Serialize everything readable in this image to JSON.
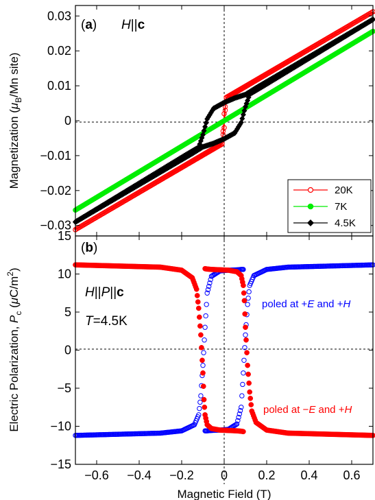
{
  "chart_data": [
    {
      "panel": "(a)",
      "type": "line",
      "annotation": [
        "H",
        "||",
        "c"
      ],
      "ylabel_parts": [
        "Magnetization (",
        "μ",
        "B",
        "/Mn site)"
      ],
      "xlim": [
        -0.7,
        0.7
      ],
      "ylim": [
        -0.033,
        0.033
      ],
      "yticks": [
        -0.03,
        -0.02,
        -0.01,
        0,
        0.01,
        0.02,
        0.03
      ],
      "ytick_labels": [
        "−0.03",
        "−0.02",
        "−0.01",
        "0",
        "0.01",
        "0.02",
        "0.03"
      ],
      "zero_lines": true,
      "legend_location": "lower-right",
      "series": [
        {
          "name": "20K",
          "color": "#ff0000",
          "marker": "open-circle",
          "branches": [
            {
              "x": [
                -0.7,
                -0.01,
                -0.005,
                0.0
              ],
              "y": [
                -0.0312,
                -0.0067,
                -0.003,
                0.002
              ]
            },
            {
              "x": [
                0.0,
                0.005,
                0.01,
                0.7
              ],
              "y": [
                0.002,
                0.004,
                0.0065,
                0.0312
              ]
            },
            {
              "x": [
                0.7,
                0.01,
                0.005,
                0.0
              ],
              "y": [
                0.0312,
                0.0067,
                0.003,
                -0.002
              ]
            },
            {
              "x": [
                0.0,
                -0.005,
                -0.01,
                -0.7
              ],
              "y": [
                -0.002,
                -0.004,
                -0.0065,
                -0.0312
              ]
            }
          ]
        },
        {
          "name": "7K",
          "color": "#00ee00",
          "marker": "filled-circle",
          "branches": [
            {
              "x": [
                -0.7,
                0.7
              ],
              "y": [
                -0.0256,
                0.0256
              ]
            }
          ]
        },
        {
          "name": "4.5K",
          "color": "#000000",
          "marker": "filled-diamond",
          "branches": [
            {
              "x": [
                -0.7,
                -0.2,
                -0.12,
                -0.1,
                -0.08,
                -0.05,
                0.0,
                0.05,
                0.1,
                0.15,
                0.7
              ],
              "y": [
                -0.029,
                -0.0105,
                -0.0076,
                -0.004,
                0.0005,
                0.0035,
                0.0052,
                0.0065,
                0.0075,
                0.0094,
                0.029
              ]
            },
            {
              "x": [
                0.7,
                0.2,
                0.12,
                0.1,
                0.08,
                0.05,
                0.0,
                -0.05,
                -0.1,
                -0.15,
                -0.7
              ],
              "y": [
                0.029,
                0.0105,
                0.0076,
                0.004,
                -0.0005,
                -0.0035,
                -0.0052,
                -0.0065,
                -0.0075,
                -0.0094,
                -0.029
              ]
            }
          ]
        }
      ]
    },
    {
      "panel": "(b)",
      "type": "scatter",
      "annotation_line1": [
        "H",
        "||",
        "P",
        "||",
        "c"
      ],
      "annotation_line2": [
        "T",
        "=4.5K"
      ],
      "ylabel_parts": [
        "Electric Polarization, ",
        "P",
        "c",
        " (",
        "μ",
        "C/m",
        "2",
        ")"
      ],
      "xlabel": "Magnetic Field (T)",
      "xlim": [
        -0.7,
        0.7
      ],
      "ylim": [
        -15,
        15
      ],
      "xticks": [
        -0.6,
        -0.4,
        -0.2,
        0,
        0.2,
        0.4,
        0.6
      ],
      "xtick_labels": [
        "−0.6",
        "−0.4",
        "−0.2",
        "0",
        "0.2",
        "0.4",
        "0.6"
      ],
      "yticks": [
        -15,
        -10,
        -5,
        0,
        5,
        10,
        15
      ],
      "ytick_labels": [
        "−15",
        "−10",
        "−5",
        "0",
        "5",
        "10",
        "15"
      ],
      "zero_lines": true,
      "series": [
        {
          "label_parts": [
            "poled at +",
            "E",
            " and +",
            "H"
          ],
          "color": "#0000ff",
          "marker": "open-circle",
          "branches": [
            {
              "x": [
                -0.7,
                -0.3,
                -0.2,
                -0.14,
                -0.12,
                -0.11,
                -0.1,
                -0.09,
                -0.08,
                -0.06,
                -0.02,
                0.02,
                0.06,
                0.08,
                0.09
              ],
              "y": [
                -11.2,
                -10.9,
                -10.6,
                -9.8,
                -8.5,
                -6.0,
                -2.0,
                3.0,
                7.5,
                9.7,
                10.4,
                10.5,
                10.55,
                10.6,
                10.6
              ]
            },
            {
              "x": [
                0.7,
                0.3,
                0.2,
                0.14,
                0.12,
                0.11,
                0.1,
                0.09,
                0.08,
                0.06,
                0.02,
                -0.02,
                -0.06,
                -0.08,
                -0.09
              ],
              "y": [
                11.2,
                10.9,
                10.6,
                9.8,
                8.5,
                6.0,
                2.0,
                -3.0,
                -7.5,
                -9.7,
                -10.4,
                -10.5,
                -10.55,
                -10.6,
                -10.6
              ]
            }
          ]
        },
        {
          "label_parts": [
            "poled at −",
            "E",
            " and +",
            "H"
          ],
          "color": "#ff0000",
          "marker": "filled-circle",
          "branches": [
            {
              "x": [
                -0.7,
                -0.3,
                -0.2,
                -0.15,
                -0.13,
                -0.12,
                -0.11,
                -0.1,
                -0.095,
                -0.09,
                -0.08,
                -0.06,
                -0.02,
                0.02,
                0.06,
                0.08,
                0.09
              ],
              "y": [
                11.2,
                10.9,
                10.5,
                9.5,
                8.0,
                5.5,
                2.0,
                -3.0,
                -6.5,
                -8.5,
                -9.8,
                -10.3,
                -10.5,
                -10.55,
                -10.6,
                -10.65,
                -10.7
              ]
            },
            {
              "x": [
                0.7,
                0.3,
                0.2,
                0.15,
                0.13,
                0.12,
                0.11,
                0.1,
                0.095,
                0.09,
                0.08,
                0.06,
                0.02,
                -0.02,
                -0.06,
                -0.08,
                -0.09
              ],
              "y": [
                -11.2,
                -10.9,
                -10.5,
                -9.5,
                -8.0,
                -5.5,
                -2.0,
                3.0,
                6.5,
                8.5,
                9.8,
                10.3,
                10.5,
                10.55,
                10.6,
                10.65,
                10.7
              ]
            }
          ]
        }
      ]
    }
  ]
}
